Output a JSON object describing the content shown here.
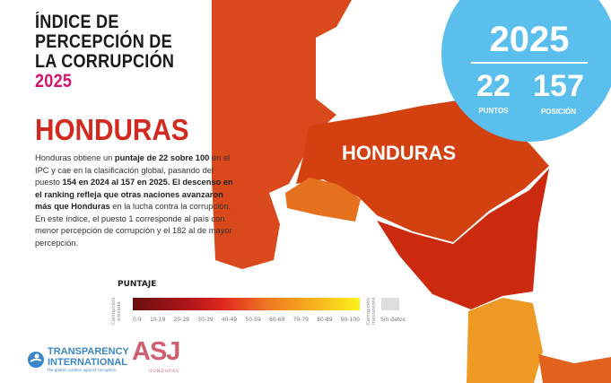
{
  "title": {
    "line1": "ÍNDICE DE",
    "line2": "PERCEPCIÓN DE",
    "line3": "LA CORRUPCIÓN",
    "year": "2025"
  },
  "country": "HONDURAS",
  "description": {
    "p1": "Honduras obtiene un ",
    "b1": "puntaje de 22 sobre 100",
    "p2": " en el IPC y cae en la clasificación global, pasando del puesto ",
    "b2": "154 en 2024 al 157 en 2025. El descenso en el ranking refleja que otras naciones avanzaron más que Honduras",
    "p3": " en la lucha contra la corrupción. En este índice, el puesto 1 corresponde al país con menor percepción de corrupción y el 182 al de mayor percepción."
  },
  "legend": {
    "title": "PUNTAJE",
    "low_label": "Corrupción elevada",
    "high_label": "Corrupción inexistente",
    "ranges": [
      "0-9",
      "10-19",
      "20-29",
      "30-39",
      "40-49",
      "50-59",
      "60-69",
      "70-79",
      "80-89",
      "90-100"
    ],
    "no_data": "Sin datos"
  },
  "map": {
    "country_label": "HONDURAS",
    "colors": {
      "honduras": "#d2410f",
      "guatemala": "#d9491b",
      "el_salvador": "#e5701d",
      "nicaragua": "#cc2a0e",
      "costa_rica": "#f09a26",
      "sea": "#ffffff"
    }
  },
  "badge": {
    "year": "2025",
    "score": "22",
    "score_label": "PUNTOS",
    "rank": "157",
    "rank_label": "POSICIÓN",
    "color": "#5bbfee"
  },
  "logos": {
    "ti_line1": "TRANSPARENCY",
    "ti_line2": "INTERNATIONAL",
    "ti_tagline": "the global coalition against corruption",
    "asj": "ASJ",
    "asj_sub": "HONDURAS"
  }
}
